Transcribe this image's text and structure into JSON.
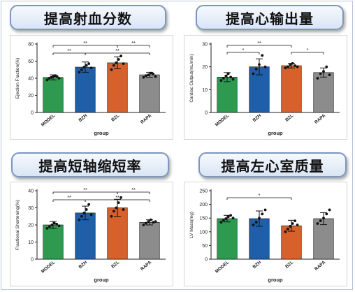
{
  "panels": [
    {
      "title": "提高射血分数"
    },
    {
      "title": "提高心输出量"
    },
    {
      "title": "提高短轴缩短率"
    },
    {
      "title": "提高左心室质量"
    }
  ],
  "chart_data": [
    {
      "type": "bar",
      "title": "提高射血分数",
      "categories": [
        "MODEL",
        "BZH",
        "BZL",
        "RAPA"
      ],
      "values": [
        41,
        53,
        58,
        44
      ],
      "errors": [
        3,
        6,
        7,
        3
      ],
      "points": [
        [
          38,
          40,
          41,
          42,
          43,
          42,
          40
        ],
        [
          47,
          50,
          53,
          55,
          57,
          52
        ],
        [
          50,
          55,
          58,
          62,
          66,
          57
        ],
        [
          41,
          43,
          44,
          46,
          45,
          42
        ]
      ],
      "colors": [
        "#2d9a4f",
        "#1f5faa",
        "#d7602b",
        "#8c8c8c"
      ],
      "xlabel": "group",
      "ylabel": "Ejection Fraction(%)",
      "ylim": [
        0,
        80
      ],
      "yticks": [
        0,
        20,
        40,
        60,
        80
      ],
      "grid": false,
      "significance": [
        {
          "from": 0,
          "to": 2,
          "label": "**"
        },
        {
          "from": 2,
          "to": 3,
          "label": "**"
        },
        {
          "from": 0,
          "to": 1,
          "label": "**"
        },
        {
          "from": 1,
          "to": 3,
          "label": "**"
        }
      ]
    },
    {
      "type": "bar",
      "title": "提高心输出量",
      "categories": [
        "MODEL",
        "BZH",
        "BZL",
        "RAPA"
      ],
      "values": [
        15.5,
        20,
        20.5,
        17.5
      ],
      "errors": [
        2,
        3.5,
        1,
        2
      ],
      "points": [
        [
          14,
          15,
          16,
          17,
          15.5,
          14.5
        ],
        [
          17,
          19,
          21,
          25,
          20
        ],
        [
          19.5,
          20,
          21,
          21.5,
          20.5,
          20
        ],
        [
          15,
          17,
          18,
          20,
          16.5
        ]
      ],
      "colors": [
        "#2d9a4f",
        "#1f5faa",
        "#d7602b",
        "#8c8c8c"
      ],
      "xlabel": "group",
      "ylabel": "Cardiac Output(mL/min)",
      "ylim": [
        0,
        30
      ],
      "yticks": [
        0,
        10,
        20,
        30
      ],
      "grid": false,
      "significance": [
        {
          "from": 0,
          "to": 2,
          "label": "**"
        },
        {
          "from": 0,
          "to": 1,
          "label": "*"
        },
        {
          "from": 2,
          "to": 3,
          "label": "*"
        }
      ]
    },
    {
      "type": "bar",
      "title": "提高短轴缩短率",
      "categories": [
        "MODEL",
        "BZH",
        "BZL",
        "RAPA"
      ],
      "values": [
        20,
        27,
        30,
        21.5
      ],
      "errors": [
        2,
        4,
        5,
        1.5
      ],
      "points": [
        [
          18,
          19,
          20,
          21,
          20.5,
          19.5
        ],
        [
          23,
          25,
          27,
          29,
          32,
          26
        ],
        [
          25,
          28,
          30,
          33,
          36,
          29
        ],
        [
          20,
          21,
          22,
          23,
          21.5,
          22
        ]
      ],
      "colors": [
        "#2d9a4f",
        "#1f5faa",
        "#d7602b",
        "#8c8c8c"
      ],
      "xlabel": "group",
      "ylabel": "Fractional Shortening(%)",
      "ylim": [
        0,
        40
      ],
      "yticks": [
        0,
        10,
        20,
        30,
        40
      ],
      "grid": false,
      "significance": [
        {
          "from": 0,
          "to": 2,
          "label": "**"
        },
        {
          "from": 2,
          "to": 3,
          "label": "**"
        },
        {
          "from": 0,
          "to": 1,
          "label": "**"
        },
        {
          "from": 1,
          "to": 3,
          "label": "**"
        }
      ]
    },
    {
      "type": "bar",
      "title": "提高左心室质量",
      "categories": [
        "MODEL",
        "BZH",
        "BZL",
        "RAPA"
      ],
      "values": [
        148,
        148,
        122,
        148
      ],
      "errors": [
        12,
        28,
        20,
        22
      ],
      "points": [
        [
          135,
          142,
          148,
          155,
          160,
          150
        ],
        [
          125,
          135,
          150,
          165,
          180
        ],
        [
          100,
          110,
          120,
          130,
          140,
          125
        ],
        [
          130,
          140,
          150,
          165,
          180
        ]
      ],
      "colors": [
        "#2d9a4f",
        "#1f5faa",
        "#d7602b",
        "#8c8c8c"
      ],
      "xlabel": "group",
      "ylabel": "LV Mass(mg)",
      "ylim": [
        0,
        250
      ],
      "yticks": [
        0,
        50,
        100,
        150,
        200,
        250
      ],
      "grid": false,
      "significance": [
        {
          "from": 0,
          "to": 2,
          "label": "*"
        }
      ]
    }
  ]
}
